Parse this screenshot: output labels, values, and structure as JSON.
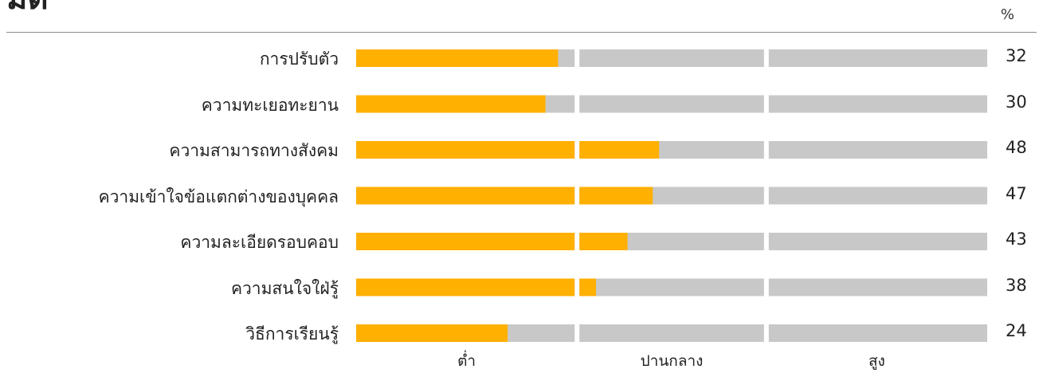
{
  "header": {
    "title": "มิติ",
    "unit": "%"
  },
  "colors": {
    "fill": "#FFB000",
    "track": "#C8C8C8"
  },
  "chart_data": {
    "type": "bar",
    "orientation": "horizontal",
    "categories": [
      "การปรับตัว",
      "ความทะเยอทะยาน",
      "ความสามารถทางสังคม",
      "ความเข้าใจข้อแตกต่างของบุคคล",
      "ความละเอียดรอบคอบ",
      "ความสนใจใฝ่รู้",
      "วิธีการเรียนรู้"
    ],
    "values": [
      32,
      30,
      48,
      47,
      43,
      38,
      24
    ],
    "xlim": [
      0,
      100
    ],
    "bands": [
      {
        "label": "ต่ำ",
        "from": 0,
        "to": 35
      },
      {
        "label": "ปานกลาง",
        "from": 35,
        "to": 65
      },
      {
        "label": "สูง",
        "from": 65,
        "to": 100
      }
    ],
    "value_unit": "%"
  }
}
